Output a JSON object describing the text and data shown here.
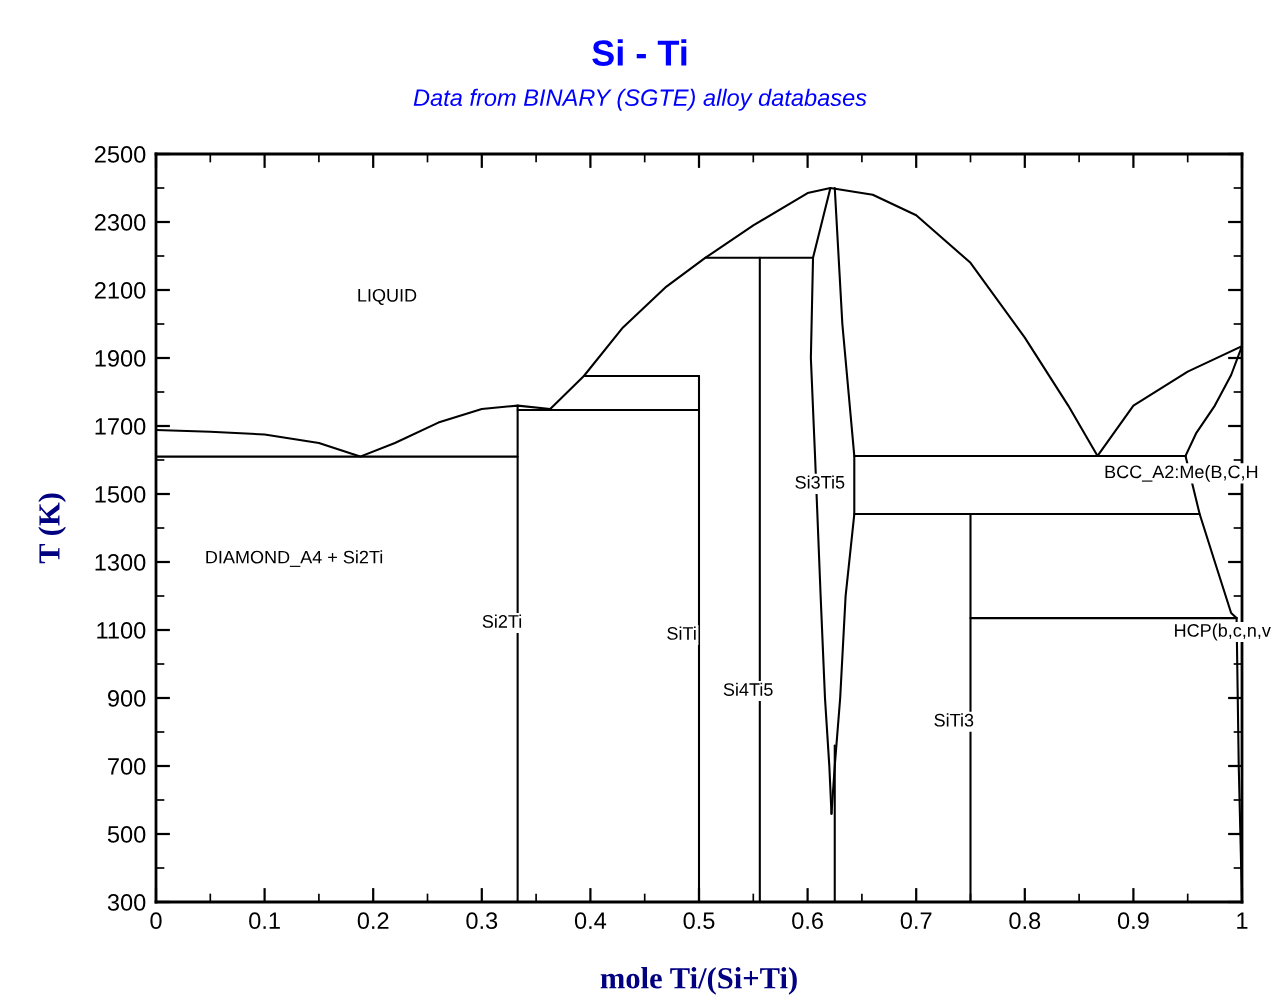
{
  "chart_data": {
    "type": "line",
    "title": "Si - Ti",
    "subtitle": "Data from BINARY (SGTE) alloy databases",
    "xlabel": "mole Ti/(Si+Ti)",
    "ylabel": "T (K)",
    "xlim": [
      0,
      1
    ],
    "ylim": [
      300,
      2500
    ],
    "xticks": [
      {
        "value": 0,
        "label": "0"
      },
      0.1,
      0.2,
      0.3,
      0.4,
      0.5,
      0.6,
      0.7,
      0.8,
      0.9,
      {
        "value": 1,
        "label": "1"
      }
    ],
    "yticks": [
      300,
      500,
      700,
      900,
      1100,
      1300,
      1500,
      1700,
      1900,
      2100,
      2300,
      2500
    ],
    "grid": false,
    "marker": "none",
    "line_style": "solid",
    "series": [
      {
        "color": "#000000",
        "x": [
          0,
          0.05,
          0.1,
          0.15,
          0.188,
          0.22,
          0.26,
          0.3,
          0.333,
          0.363
        ],
        "values": [
          1688,
          1683,
          1675,
          1650,
          1610,
          1650,
          1710,
          1750,
          1760,
          1750
        ]
      },
      {
        "color": "#000000",
        "x": [
          0.363,
          0.394,
          0.43,
          0.47,
          0.506,
          0.55,
          0.6,
          0.621,
          0.66,
          0.7,
          0.75,
          0.8,
          0.84,
          0.867
        ],
        "values": [
          1750,
          1847,
          1990,
          2110,
          2195,
          2290,
          2385,
          2400,
          2380,
          2320,
          2180,
          1960,
          1760,
          1612
        ]
      },
      {
        "color": "#000000",
        "x": [
          0.867,
          0.9,
          0.95,
          1
        ],
        "values": [
          1612,
          1760,
          1860,
          1935
        ]
      },
      {
        "color": "#000000",
        "x": [
          1,
          0.99,
          0.975,
          0.958,
          0.948
        ],
        "values": [
          1935,
          1850,
          1760,
          1680,
          1612
        ]
      },
      {
        "color": "#000000",
        "x": [
          0.948,
          0.955,
          0.961,
          0.975,
          0.99,
          0.995
        ],
        "values": [
          1612,
          1520,
          1441,
          1300,
          1150,
          1135
        ]
      },
      {
        "color": "#000000",
        "x": [
          0.995,
          0.997,
          1
        ],
        "values": [
          1135,
          700,
          300
        ]
      },
      {
        "color": "#000000",
        "x": [
          0,
          0.333
        ],
        "values": [
          1610,
          1610
        ]
      },
      {
        "color": "#000000",
        "x": [
          0.333,
          0.333
        ],
        "values": [
          1760,
          300
        ]
      },
      {
        "color": "#000000",
        "x": [
          0.333,
          0.5
        ],
        "values": [
          1747,
          1747
        ]
      },
      {
        "color": "#000000",
        "x": [
          0.394,
          0.5
        ],
        "values": [
          1847,
          1847
        ]
      },
      {
        "color": "#000000",
        "x": [
          0.5,
          0.5
        ],
        "values": [
          1847,
          300
        ]
      },
      {
        "color": "#000000",
        "x": [
          0.506,
          0.605
        ],
        "values": [
          2195,
          2195
        ]
      },
      {
        "color": "#000000",
        "x": [
          0.556,
          0.556
        ],
        "values": [
          2195,
          300
        ]
      },
      {
        "color": "#000000",
        "x": [
          0.621,
          0.605,
          0.603,
          0.607,
          0.612,
          0.616,
          0.62,
          0.622
        ],
        "values": [
          2400,
          2195,
          1900,
          1600,
          1200,
          900,
          700,
          560
        ]
      },
      {
        "color": "#000000",
        "x": [
          0.625,
          0.632,
          0.643,
          0.643,
          0.635,
          0.63,
          0.625,
          0.622
        ],
        "values": [
          2400,
          2000,
          1612,
          1441,
          1200,
          900,
          700,
          560
        ]
      },
      {
        "color": "#000000",
        "x": [
          0.625,
          0.625
        ],
        "values": [
          760,
          300
        ]
      },
      {
        "color": "#000000",
        "x": [
          0.643,
          0.948
        ],
        "values": [
          1612,
          1612
        ]
      },
      {
        "color": "#000000",
        "x": [
          0.643,
          0.961
        ],
        "values": [
          1441,
          1441
        ]
      },
      {
        "color": "#000000",
        "x": [
          0.75,
          0.75
        ],
        "values": [
          1441,
          300
        ]
      },
      {
        "color": "#000000",
        "x": [
          0.75,
          0.995
        ],
        "values": [
          1135,
          1135
        ]
      }
    ],
    "annotations": [
      "LIQUID",
      "DIAMOND_A4 + Si2Ti",
      "Si2Ti",
      "SiTi",
      "Si4Ti5",
      "Si3Ti5",
      "SiTi3",
      "BCC_A2:Me(B,C,H",
      "HCP(b,c,n,v"
    ]
  }
}
